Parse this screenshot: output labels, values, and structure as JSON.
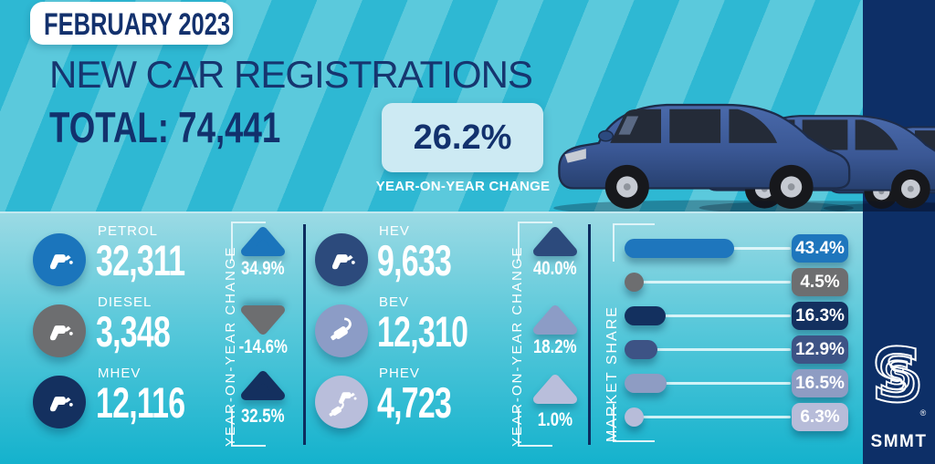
{
  "header": {
    "date_badge": "FEBRUARY 2023",
    "title": "NEW CAR REGISTRATIONS",
    "total": "TOTAL: 74,441",
    "yoy_value": "26.2%",
    "yoy_caption": "YEAR-ON-YEAR CHANGE"
  },
  "axes": {
    "yoy_label": "YEAR-ON-YEAR CHANGE",
    "market_share_label": "MARKET SHARE"
  },
  "fuels": [
    {
      "label": "PETROL",
      "value": "32,311",
      "change": "34.9%",
      "direction": "up",
      "color": "#1b75bc"
    },
    {
      "label": "DIESEL",
      "value": "3,348",
      "change": "-14.6%",
      "direction": "down",
      "color": "#6d6e70"
    },
    {
      "label": "MHEV",
      "value": "12,116",
      "change": "32.5%",
      "direction": "up",
      "color": "#14305f"
    },
    {
      "label": "HEV",
      "value": "9,633",
      "change": "40.0%",
      "direction": "up",
      "color": "#2c4a7c"
    },
    {
      "label": "BEV",
      "value": "12,310",
      "change": "18.2%",
      "direction": "up",
      "color": "#8c9cc6"
    },
    {
      "label": "PHEV",
      "value": "4,723",
      "change": "1.0%",
      "direction": "up",
      "color": "#b9bedb"
    }
  ],
  "market_share": {
    "rows": [
      {
        "label": "PETROL",
        "value": "43.4%",
        "pct": 43.4,
        "color": "#1e76bd"
      },
      {
        "label": "DIESEL",
        "value": "4.5%",
        "pct": 4.5,
        "color": "#6d6e70"
      },
      {
        "label": "MHEV",
        "value": "16.3%",
        "pct": 16.3,
        "color": "#13305f"
      },
      {
        "label": "HEV",
        "value": "12.9%",
        "pct": 12.9,
        "color": "#3d5385"
      },
      {
        "label": "BEV",
        "value": "16.5%",
        "pct": 16.5,
        "color": "#8e9cc3"
      },
      {
        "label": "PHEV",
        "value": "6.3%",
        "pct": 6.3,
        "color": "#b7bcd9"
      }
    ]
  },
  "brand": {
    "name": "SMMT",
    "registered": "®"
  },
  "chart_data": {
    "type": "bar",
    "title": "NEW CAR REGISTRATIONS",
    "subtitle": "FEBRUARY 2023",
    "total_registrations": 74441,
    "total_yoy_change_pct": 26.2,
    "categories": [
      "PETROL",
      "DIESEL",
      "MHEV",
      "HEV",
      "BEV",
      "PHEV"
    ],
    "series": [
      {
        "name": "registrations",
        "values": [
          32311,
          3348,
          12116,
          9633,
          12310,
          4723
        ]
      },
      {
        "name": "yoy_change_pct",
        "values": [
          34.9,
          -14.6,
          32.5,
          40.0,
          18.2,
          1.0
        ]
      },
      {
        "name": "market_share_pct",
        "values": [
          43.4,
          4.5,
          16.3,
          12.9,
          16.5,
          6.3
        ]
      }
    ],
    "legend_position": "none",
    "grid": false
  }
}
